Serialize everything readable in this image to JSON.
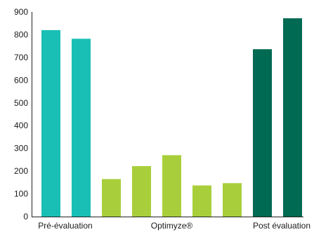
{
  "chart_data": {
    "type": "bar",
    "title": "",
    "xlabel": "",
    "ylabel": "",
    "ylim": [
      0,
      900
    ],
    "yticks": [
      0,
      100,
      200,
      300,
      400,
      500,
      600,
      700,
      800,
      900
    ],
    "grid": false,
    "legend": "none",
    "groups": [
      {
        "label": "Pré-évaluation",
        "color": "#19bfb5",
        "values": [
          820,
          782
        ]
      },
      {
        "label": "Optimyze®",
        "color": "#a8cf3b",
        "values": [
          165,
          222,
          270,
          137,
          147
        ]
      },
      {
        "label": "Post évaluation",
        "color": "#006a52",
        "values": [
          736,
          872
        ]
      }
    ]
  }
}
